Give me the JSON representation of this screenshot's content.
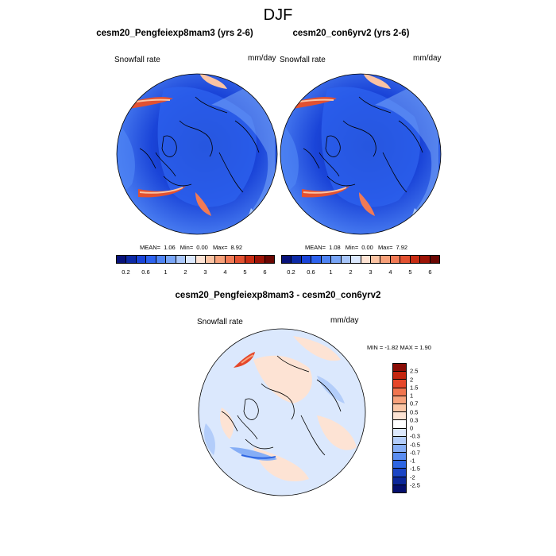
{
  "title": "DJF",
  "panels": [
    {
      "id": "left",
      "title": "cesm20_Pengfeiexp8mam3 (yrs 2-6)",
      "variable": "Snowfall rate",
      "units": "mm/day",
      "stats": {
        "mean_label": "MEAN=",
        "mean": "1.06",
        "min_label": "Min=",
        "min": "0.00",
        "max_label": "Max=",
        "max": "8.92"
      }
    },
    {
      "id": "right",
      "title": "cesm20_con6yrv2 (yrs 2-6)",
      "variable": "Snowfall rate",
      "units": "mm/day",
      "stats": {
        "mean_label": "MEAN=",
        "mean": "1.08",
        "min_label": "Min=",
        "min": "0.00",
        "max_label": "Max=",
        "max": "7.92"
      }
    }
  ],
  "diff_panel": {
    "title": "cesm20_Pengfeiexp8mam3 - cesm20_con6yrv2",
    "variable": "Snowfall rate",
    "units": "mm/day",
    "stats": {
      "min_label": "MIN =",
      "min": "-1.82",
      "max_label": "MAX =",
      "max": "1.90"
    }
  },
  "colorbar_main": {
    "colors": [
      "#08127a",
      "#0d2aa6",
      "#1a44d8",
      "#2d62ee",
      "#4f84f4",
      "#78a5f7",
      "#a8c6fa",
      "#dbe8fd",
      "#fde3d4",
      "#fbc3a3",
      "#f7a079",
      "#f17a55",
      "#e25131",
      "#c72c13",
      "#9c1306",
      "#6a0703"
    ],
    "tick_labels": [
      "0.2",
      "0.6",
      "1",
      "2",
      "3",
      "4",
      "5",
      "6"
    ]
  },
  "colorbar_diff": {
    "colors": [
      "#8a0d06",
      "#c4260f",
      "#e5472a",
      "#f1754f",
      "#f7a27c",
      "#fbc7a7",
      "#fde3d3",
      "#ffffff",
      "#dde9fd",
      "#b3cdfa",
      "#86aef6",
      "#5a8df1",
      "#2e66e3",
      "#1b45c4",
      "#0c2799",
      "#050f6e"
    ],
    "tick_labels": [
      "2.5",
      "2",
      "1.5",
      "1",
      "0.7",
      "0.5",
      "0.3",
      "0",
      "-0.3",
      "-0.5",
      "-0.7",
      "-1",
      "-1.5",
      "-2",
      "-2.5"
    ]
  }
}
